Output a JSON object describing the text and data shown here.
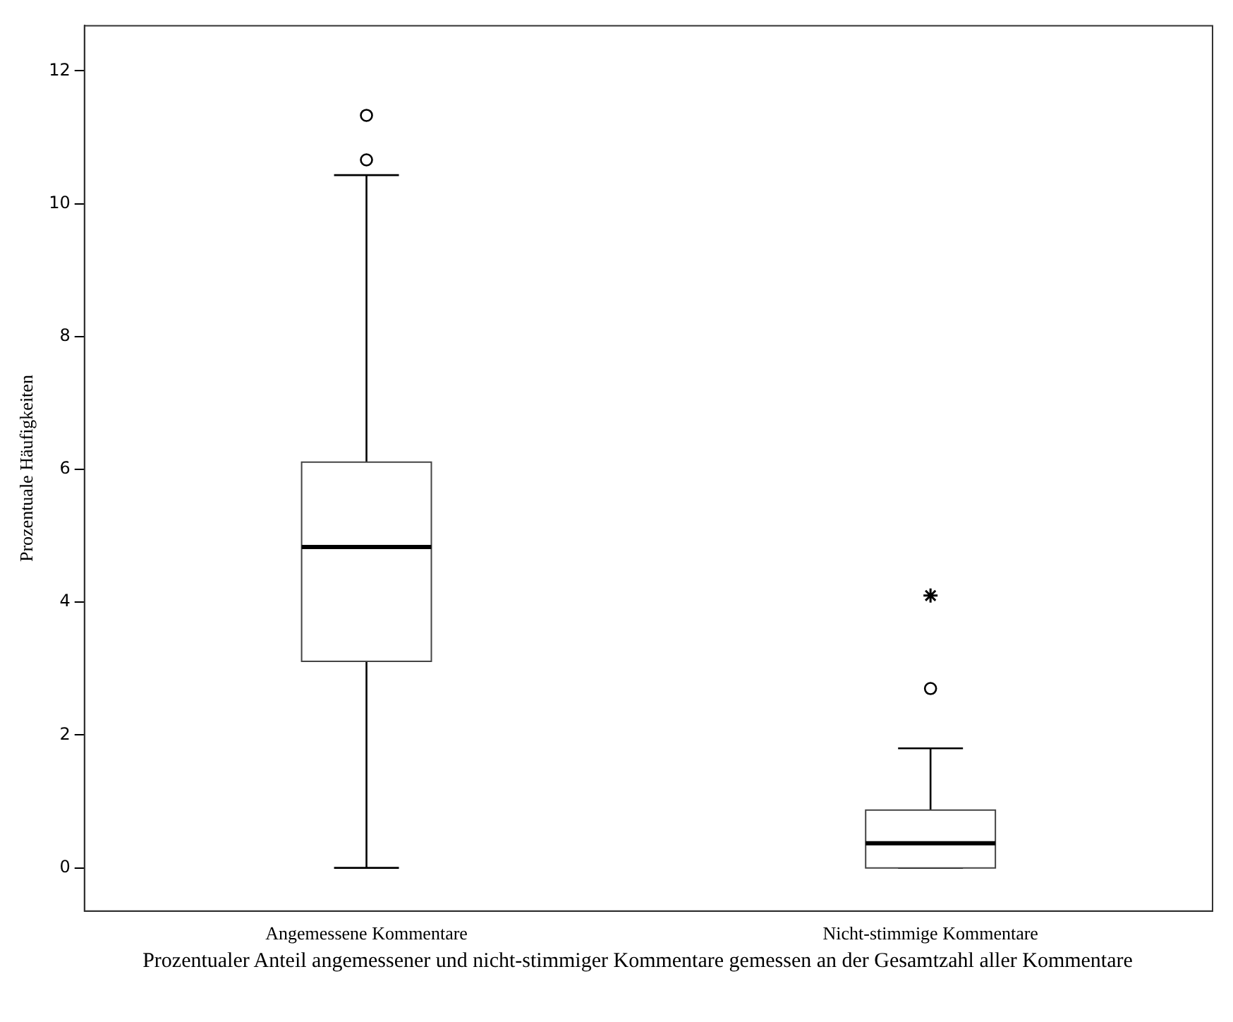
{
  "chart_data": {
    "type": "box",
    "xlabel": "Prozentualer Anteil angemessener und nicht-stimmiger Kommentare gemessen an der Gesamtzahl aller Kommentare",
    "ylabel": "Prozentuale Häufigkeiten",
    "categories": [
      "Angemessene Kommentare",
      "Nicht-stimmige Kommentare"
    ],
    "boxes": [
      {
        "low": 0,
        "q1": 3.11,
        "median": 4.83,
        "q3": 6.11,
        "high": 10.43,
        "outliers": [
          10.66,
          11.33
        ]
      },
      {
        "low": 0,
        "q1": 0,
        "median": 0.37,
        "q3": 0.87,
        "high": 1.8,
        "outliers": [
          2.7
        ]
      }
    ],
    "series": [
      {
        "type": "scatter",
        "marker": "cross",
        "color": "#000000",
        "x": [
          "Nicht-stimmige Kommentare"
        ],
        "values": [
          4.1
        ]
      }
    ],
    "ylim": [
      -0.65,
      12.68
    ],
    "yticks": [
      0,
      2,
      4,
      6,
      8,
      10,
      12
    ],
    "grid": false,
    "legend": false
  }
}
